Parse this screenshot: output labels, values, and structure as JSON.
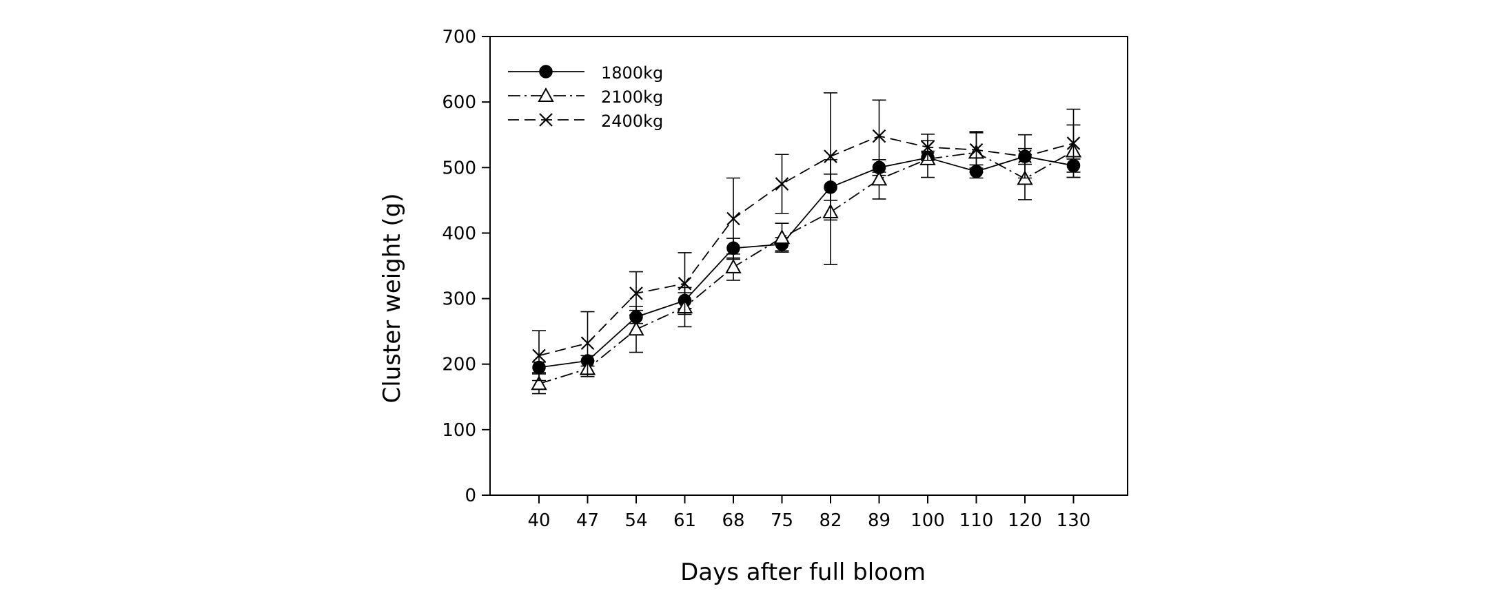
{
  "chart_data": {
    "type": "line",
    "title": "",
    "xlabel": "Days after full bloom",
    "ylabel": "Cluster weight (g)",
    "categories": [
      "40",
      "47",
      "54",
      "61",
      "68",
      "75",
      "82",
      "89",
      "100",
      "110",
      "120",
      "130"
    ],
    "ylim": [
      0,
      700
    ],
    "yticks": [
      0,
      100,
      200,
      300,
      400,
      500,
      600,
      700
    ],
    "grid": false,
    "legend_position": "top-left",
    "series": [
      {
        "name": "1800kg",
        "marker": "filled-circle",
        "line_style": "solid",
        "values": [
          195,
          205,
          272,
          297,
          377,
          383,
          470,
          500,
          515,
          494,
          517,
          503
        ],
        "error": [
          8,
          8,
          10,
          12,
          15,
          10,
          20,
          12,
          10,
          10,
          12,
          10
        ]
      },
      {
        "name": "2100kg",
        "marker": "open-triangle",
        "line_style": "dash-dot",
        "values": [
          170,
          193,
          253,
          287,
          348,
          393,
          432,
          482,
          513,
          523,
          483,
          525
        ],
        "error": [
          15,
          12,
          35,
          30,
          20,
          22,
          80,
          30,
          28,
          30,
          32,
          40
        ]
      },
      {
        "name": "2400kg",
        "marker": "x",
        "line_style": "dashed",
        "values": [
          213,
          232,
          308,
          323,
          422,
          475,
          517,
          548,
          531,
          527,
          517,
          537
        ],
        "error": [
          38,
          48,
          33,
          47,
          62,
          45,
          97,
          55,
          20,
          28,
          33,
          52
        ]
      }
    ]
  }
}
